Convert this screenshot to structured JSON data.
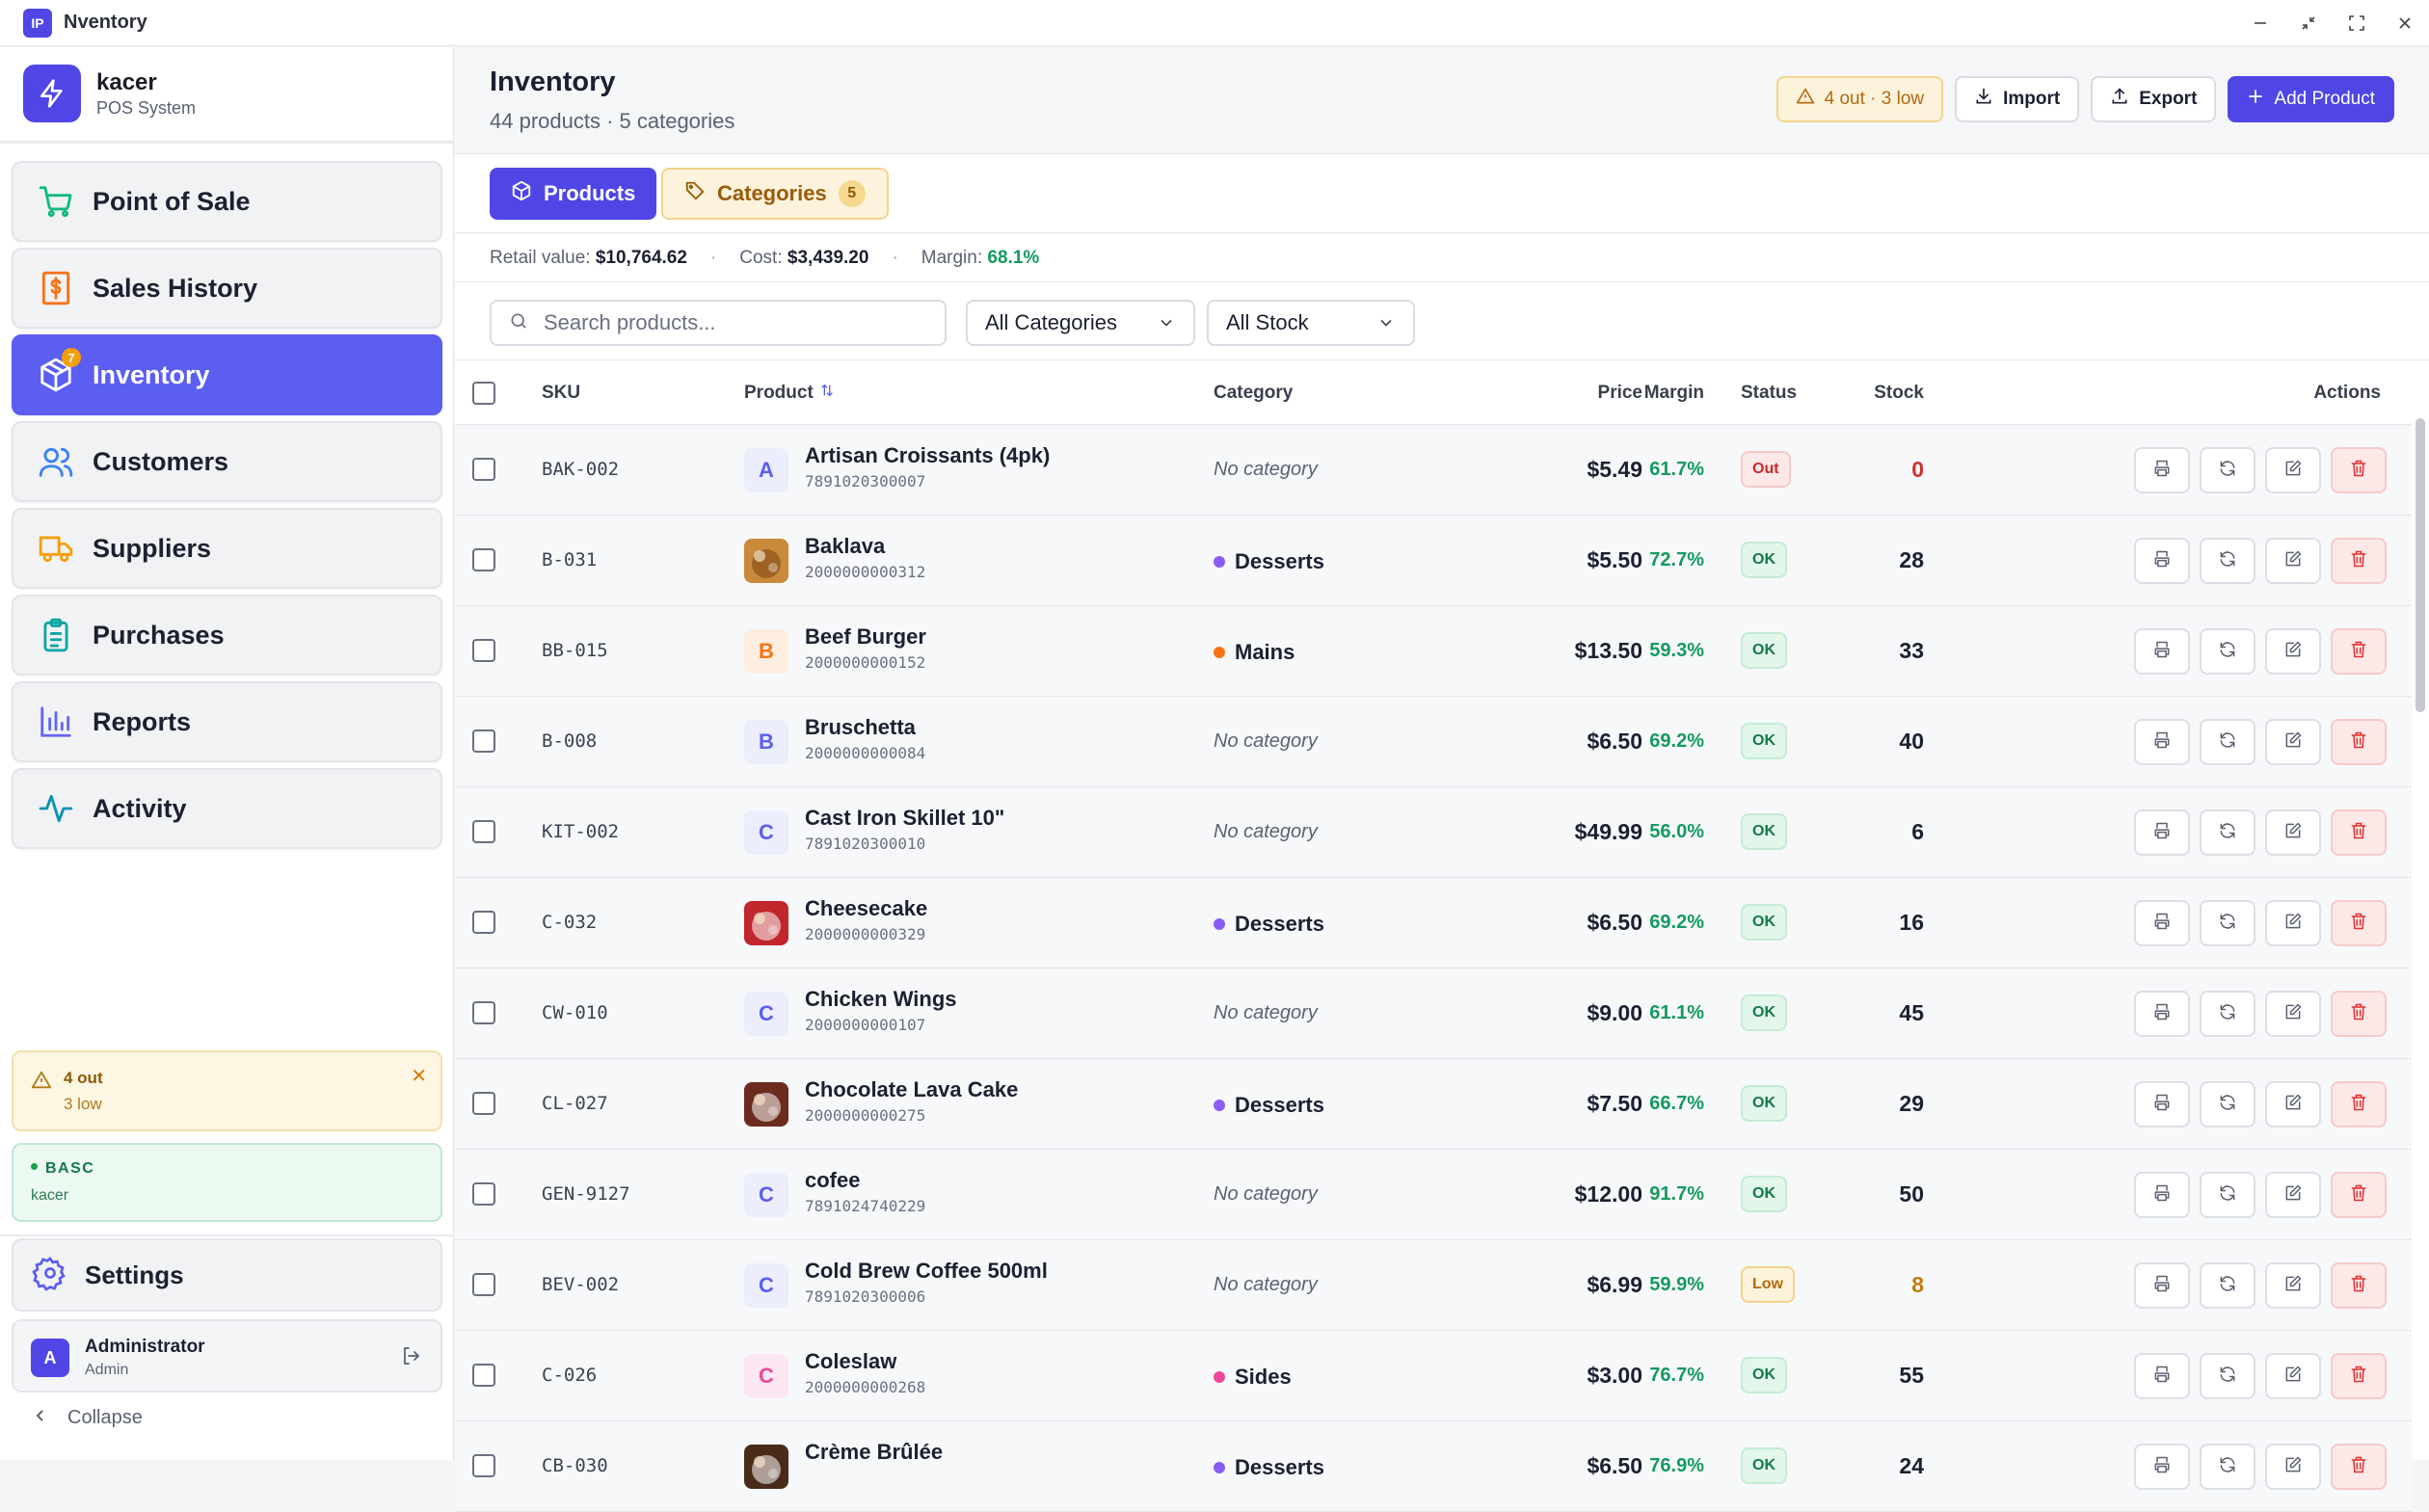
{
  "titlebar": {
    "logo": "IP",
    "title": "Nventory"
  },
  "brand": {
    "name": "kacer",
    "subtitle": "POS System"
  },
  "nav": [
    {
      "label": "Point of Sale",
      "icon": "cart-icon",
      "color": "#10b981"
    },
    {
      "label": "Sales History",
      "icon": "receipt-icon",
      "color": "#f97316"
    },
    {
      "label": "Inventory",
      "icon": "package-icon",
      "color": "#ffffff",
      "active": true,
      "badge": "7"
    },
    {
      "label": "Customers",
      "icon": "users-icon",
      "color": "#3b82f6"
    },
    {
      "label": "Suppliers",
      "icon": "truck-icon",
      "color": "#f59e0b"
    },
    {
      "label": "Purchases",
      "icon": "clipboard-icon",
      "color": "#0ea5a4"
    },
    {
      "label": "Reports",
      "icon": "bar-chart-icon",
      "color": "#6366f1"
    },
    {
      "label": "Activity",
      "icon": "activity-icon",
      "color": "#0891b2"
    }
  ],
  "alert": {
    "title": "4 out",
    "subtitle": "3 low"
  },
  "license": {
    "title": "BASC",
    "subtitle": "kacer"
  },
  "settings": {
    "label": "Settings"
  },
  "user": {
    "avatar": "A",
    "name": "Administrator",
    "role": "Admin"
  },
  "collapse": {
    "label": "Collapse"
  },
  "header": {
    "title": "Inventory",
    "subtitle": "44 products · 5 categories",
    "stock_alert": "4 out · 3 low",
    "import_label": "Import",
    "export_label": "Export",
    "add_label": "Add Product"
  },
  "tabs": {
    "products": "Products",
    "categories": "Categories",
    "categories_count": "5"
  },
  "stats": {
    "retail_label": "Retail value:",
    "retail_value": "$10,764.62",
    "cost_label": "Cost:",
    "cost_value": "$3,439.20",
    "margin_label": "Margin:",
    "margin_value": "68.1%"
  },
  "filters": {
    "search_placeholder": "Search products...",
    "category_selected": "All Categories",
    "stock_selected": "All Stock"
  },
  "table": {
    "headers": {
      "sku": "SKU",
      "product": "Product",
      "category": "Category",
      "price": "Price",
      "margin": "Margin",
      "status": "Status",
      "stock": "Stock",
      "actions": "Actions"
    },
    "rows": [
      {
        "sku": "BAK-002",
        "avatar": "A",
        "avatar_type": "letter",
        "avatar_bg": "#eceefe",
        "avatar_fg": "#5b5ef0",
        "name": "Artisan Croissants (4pk)",
        "code": "7891020300007",
        "category": "No category",
        "cat_color": "",
        "price": "$5.49",
        "margin": "61.7%",
        "status": "Out",
        "status_type": "out",
        "stock": "0",
        "stock_type": "red"
      },
      {
        "sku": "B-031",
        "avatar": "",
        "avatar_type": "photo",
        "avatar_bg": "#c98a3a",
        "avatar_fg": "#7a4212",
        "name": "Baklava",
        "code": "2000000000312",
        "category": "Desserts",
        "cat_color": "#8b5cf6",
        "price": "$5.50",
        "margin": "72.7%",
        "status": "OK",
        "status_type": "ok",
        "stock": "28",
        "stock_type": ""
      },
      {
        "sku": "BB-015",
        "avatar": "B",
        "avatar_type": "letter",
        "avatar_bg": "#fdeee0",
        "avatar_fg": "#f97316",
        "name": "Beef Burger",
        "code": "2000000000152",
        "category": "Mains",
        "cat_color": "#f97316",
        "price": "$13.50",
        "margin": "59.3%",
        "status": "OK",
        "status_type": "ok",
        "stock": "33",
        "stock_type": ""
      },
      {
        "sku": "B-008",
        "avatar": "B",
        "avatar_type": "letter",
        "avatar_bg": "#eceefe",
        "avatar_fg": "#5b5ef0",
        "name": "Bruschetta",
        "code": "2000000000084",
        "category": "No category",
        "cat_color": "",
        "price": "$6.50",
        "margin": "69.2%",
        "status": "OK",
        "status_type": "ok",
        "stock": "40",
        "stock_type": ""
      },
      {
        "sku": "KIT-002",
        "avatar": "C",
        "avatar_type": "letter",
        "avatar_bg": "#eceefe",
        "avatar_fg": "#5b5ef0",
        "name": "Cast Iron Skillet 10\"",
        "code": "7891020300010",
        "category": "No category",
        "cat_color": "",
        "price": "$49.99",
        "margin": "56.0%",
        "status": "OK",
        "status_type": "ok",
        "stock": "6",
        "stock_type": ""
      },
      {
        "sku": "C-032",
        "avatar": "",
        "avatar_type": "photo",
        "avatar_bg": "#c0262b",
        "avatar_fg": "#ffffff",
        "name": "Cheesecake",
        "code": "2000000000329",
        "category": "Desserts",
        "cat_color": "#8b5cf6",
        "price": "$6.50",
        "margin": "69.2%",
        "status": "OK",
        "status_type": "ok",
        "stock": "16",
        "stock_type": ""
      },
      {
        "sku": "CW-010",
        "avatar": "C",
        "avatar_type": "letter",
        "avatar_bg": "#eceefe",
        "avatar_fg": "#5b5ef0",
        "name": "Chicken Wings",
        "code": "2000000000107",
        "category": "No category",
        "cat_color": "",
        "price": "$9.00",
        "margin": "61.1%",
        "status": "OK",
        "status_type": "ok",
        "stock": "45",
        "stock_type": ""
      },
      {
        "sku": "CL-027",
        "avatar": "",
        "avatar_type": "photo",
        "avatar_bg": "#6b2c1d",
        "avatar_fg": "#ffffff",
        "name": "Chocolate Lava Cake",
        "code": "2000000000275",
        "category": "Desserts",
        "cat_color": "#8b5cf6",
        "price": "$7.50",
        "margin": "66.7%",
        "status": "OK",
        "status_type": "ok",
        "stock": "29",
        "stock_type": ""
      },
      {
        "sku": "GEN-9127",
        "avatar": "C",
        "avatar_type": "letter",
        "avatar_bg": "#eceefe",
        "avatar_fg": "#5b5ef0",
        "name": "cofee",
        "code": "7891024740229",
        "category": "No category",
        "cat_color": "",
        "price": "$12.00",
        "margin": "91.7%",
        "status": "OK",
        "status_type": "ok",
        "stock": "50",
        "stock_type": ""
      },
      {
        "sku": "BEV-002",
        "avatar": "C",
        "avatar_type": "letter",
        "avatar_bg": "#eceefe",
        "avatar_fg": "#5b5ef0",
        "name": "Cold Brew Coffee 500ml",
        "code": "7891020300006",
        "category": "No category",
        "cat_color": "",
        "price": "$6.99",
        "margin": "59.9%",
        "status": "Low",
        "status_type": "low",
        "stock": "8",
        "stock_type": "amber"
      },
      {
        "sku": "C-026",
        "avatar": "C",
        "avatar_type": "letter",
        "avatar_bg": "#fce7f3",
        "avatar_fg": "#ec4899",
        "name": "Coleslaw",
        "code": "2000000000268",
        "category": "Sides",
        "cat_color": "#ec4899",
        "price": "$3.00",
        "margin": "76.7%",
        "status": "OK",
        "status_type": "ok",
        "stock": "55",
        "stock_type": ""
      },
      {
        "sku": "CB-030",
        "avatar": "",
        "avatar_type": "photo",
        "avatar_bg": "#4a2b1a",
        "avatar_fg": "#ffffff",
        "name": "Crème Brûlée",
        "code": "",
        "category": "Desserts",
        "cat_color": "#8b5cf6",
        "price": "$6.50",
        "margin": "76.9%",
        "status": "OK",
        "status_type": "ok",
        "stock": "24",
        "stock_type": ""
      }
    ]
  }
}
